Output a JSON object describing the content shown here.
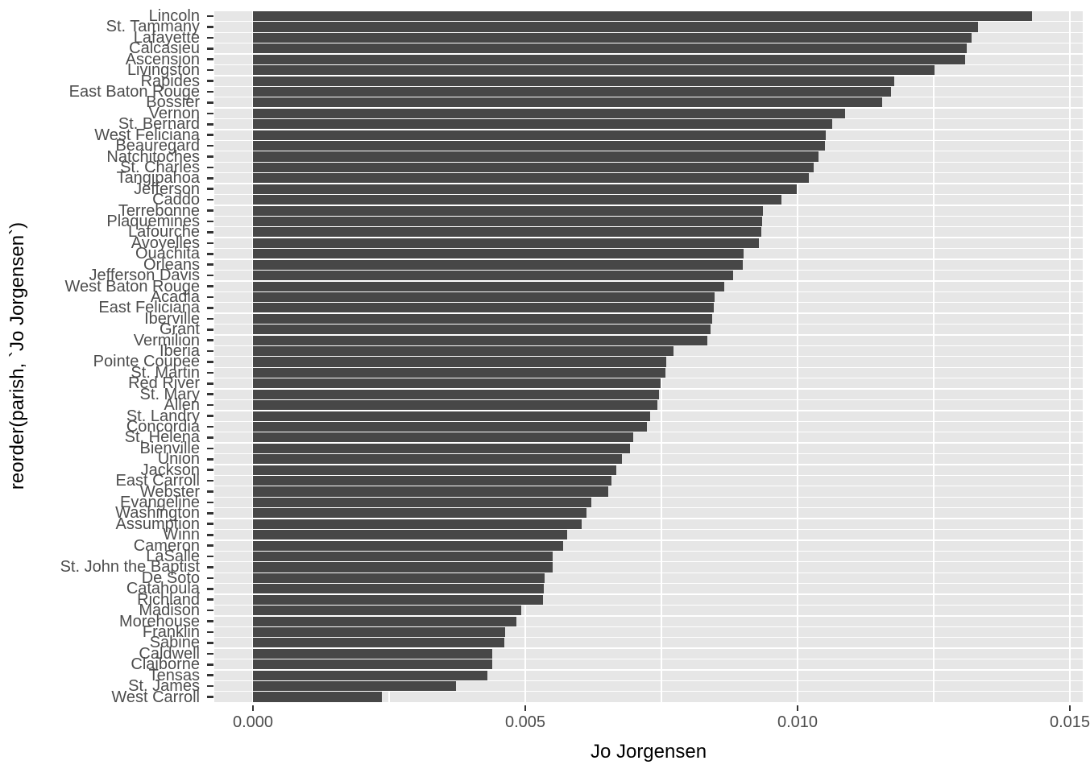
{
  "chart_data": {
    "type": "bar",
    "orientation": "horizontal",
    "title": "",
    "xlabel": "Jo Jorgensen",
    "ylabel": "reorder(parish, `Jo Jorgensen`)",
    "xlim": [
      0,
      0.015
    ],
    "x_ticks": {
      "values": [
        0,
        0.005,
        0.01,
        0.015
      ],
      "labels": [
        "0.000",
        "0.005",
        "0.010",
        "0.015"
      ]
    },
    "x_minor_ticks": [
      0.0025,
      0.0075,
      0.0125
    ],
    "grid": "white major/minor vertical lines on gray row stripes (ggplot theme_gray)",
    "legend": "none",
    "categories": [
      "Lincoln",
      "St. Tammany",
      "Lafayette",
      "Calcasieu",
      "Ascension",
      "Livingston",
      "Rapides",
      "East Baton Rouge",
      "Bossier",
      "Vernon",
      "St. Bernard",
      "West Feliciana",
      "Beauregard",
      "Natchitoches",
      "St. Charles",
      "Tangipahoa",
      "Jefferson",
      "Caddo",
      "Terrebonne",
      "Plaquemines",
      "Lafourche",
      "Avoyelles",
      "Ouachita",
      "Orleans",
      "Jefferson Davis",
      "West Baton Rouge",
      "Acadia",
      "East Feliciana",
      "Iberville",
      "Grant",
      "Vermilion",
      "Iberia",
      "Pointe Coupee",
      "St. Martin",
      "Red River",
      "St. Mary",
      "Allen",
      "St. Landry",
      "Concordia",
      "St. Helena",
      "Bienville",
      "Union",
      "Jackson",
      "East Carroll",
      "Webster",
      "Evangeline",
      "Washington",
      "Assumption",
      "Winn",
      "Cameron",
      "LaSalle",
      "St. John the Baptist",
      "De Soto",
      "Catahoula",
      "Richland",
      "Madison",
      "Morehouse",
      "Franklin",
      "Sabine",
      "Caldwell",
      "Claiborne",
      "Tensas",
      "St. James",
      "West Carroll"
    ],
    "values": [
      0.0143,
      0.01331,
      0.01319,
      0.0131,
      0.01307,
      0.01252,
      0.01177,
      0.01171,
      0.01155,
      0.01087,
      0.01064,
      0.01052,
      0.0105,
      0.01038,
      0.01029,
      0.01021,
      0.00998,
      0.00971,
      0.00937,
      0.00935,
      0.00933,
      0.00929,
      0.00901,
      0.009,
      0.00881,
      0.00865,
      0.00848,
      0.00846,
      0.00843,
      0.0084,
      0.00834,
      0.00772,
      0.00759,
      0.00757,
      0.00749,
      0.00745,
      0.00743,
      0.0073,
      0.00724,
      0.00698,
      0.00693,
      0.00677,
      0.00667,
      0.00658,
      0.00652,
      0.00622,
      0.00613,
      0.00604,
      0.00577,
      0.0057,
      0.0055,
      0.0055,
      0.00536,
      0.00534,
      0.00532,
      0.00493,
      0.00483,
      0.00463,
      0.00461,
      0.0044,
      0.0044,
      0.0043,
      0.00373,
      0.00236
    ],
    "colors": {
      "bar": "#474747",
      "panel_stripe": "#E6E6E6",
      "gridline": "#FFFFFF",
      "axis_text": "#4D4D4D",
      "axis_title": "#000000",
      "tick_mark": "#333333",
      "background": "#FFFFFF"
    }
  }
}
